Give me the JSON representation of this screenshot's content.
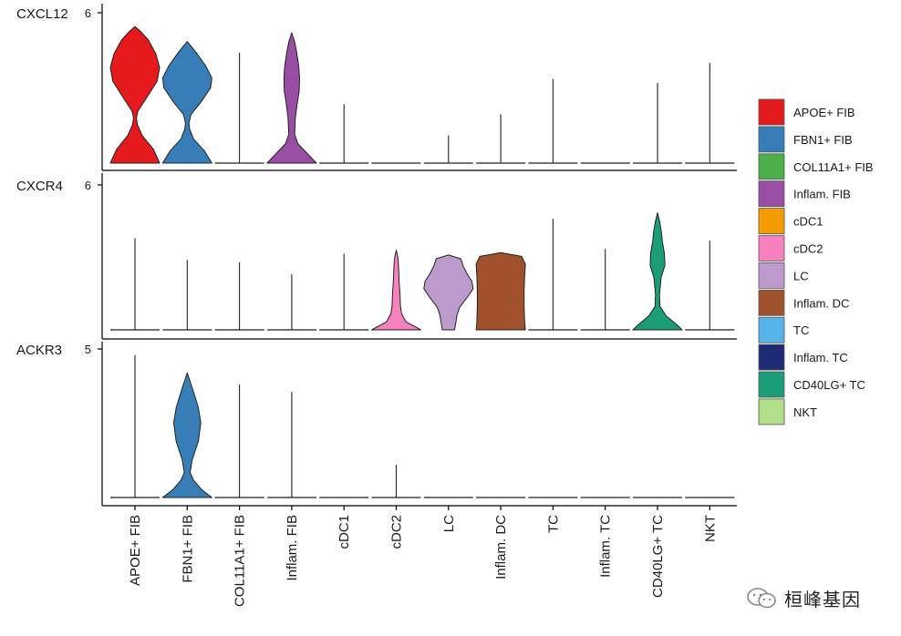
{
  "chart_data": {
    "type": "violin",
    "groups": [
      "APOE+ FIB",
      "FBN1+ FIB",
      "COL11A1+ FIB",
      "Inflam. FIB",
      "cDC1",
      "cDC2",
      "LC",
      "Inflam. DC",
      "TC",
      "Inflam. TC",
      "CD40LG+ TC",
      "NKT"
    ],
    "legend": [
      {
        "label": "APOE+ FIB",
        "color": "#E41A1C"
      },
      {
        "label": "FBN1+ FIB",
        "color": "#377EB8"
      },
      {
        "label": "COL11A1+ FIB",
        "color": "#4DAF4A"
      },
      {
        "label": "Inflam. FIB",
        "color": "#984EA3"
      },
      {
        "label": "cDC1",
        "color": "#F39B00"
      },
      {
        "label": "cDC2",
        "color": "#F781BF"
      },
      {
        "label": "LC",
        "color": "#BC9ACB"
      },
      {
        "label": "Inflam. DC",
        "color": "#A0522D"
      },
      {
        "label": "TC",
        "color": "#56B4E9"
      },
      {
        "label": "Inflam. TC",
        "color": "#1F2A74"
      },
      {
        "label": "CD40LG+ TC",
        "color": "#1B9E77"
      },
      {
        "label": "NKT",
        "color": "#B2DF8A"
      }
    ],
    "panels": [
      {
        "gene": "CXCL12",
        "ytick": "6",
        "ymax": 6.0,
        "violins": [
          {
            "group": "APOE+ FIB",
            "max": 5.45,
            "profile": [
              [
                0,
                1.0
              ],
              [
                0.1,
                0.75
              ],
              [
                0.2,
                0.3
              ],
              [
                0.28,
                0.1
              ],
              [
                0.33,
                0.06
              ],
              [
                0.38,
                0.12
              ],
              [
                0.5,
                0.55
              ],
              [
                0.6,
                0.9
              ],
              [
                0.7,
                1.0
              ],
              [
                0.8,
                0.85
              ],
              [
                0.9,
                0.55
              ],
              [
                0.96,
                0.25
              ],
              [
                1.0,
                0
              ]
            ]
          },
          {
            "group": "FBN1+ FIB",
            "max": 4.85,
            "profile": [
              [
                0,
                1.0
              ],
              [
                0.1,
                0.7
              ],
              [
                0.2,
                0.25
              ],
              [
                0.28,
                0.1
              ],
              [
                0.33,
                0.07
              ],
              [
                0.4,
                0.15
              ],
              [
                0.5,
                0.55
              ],
              [
                0.62,
                0.95
              ],
              [
                0.7,
                1.0
              ],
              [
                0.8,
                0.75
              ],
              [
                0.9,
                0.4
              ],
              [
                1.0,
                0
              ]
            ]
          },
          {
            "group": "COL11A1+ FIB",
            "max": 4.4,
            "profile": []
          },
          {
            "group": "Inflam. FIB",
            "max": 5.2,
            "profile": [
              [
                0,
                1.0
              ],
              [
                0.08,
                0.6
              ],
              [
                0.15,
                0.25
              ],
              [
                0.22,
                0.12
              ],
              [
                0.35,
                0.15
              ],
              [
                0.45,
                0.22
              ],
              [
                0.55,
                0.3
              ],
              [
                0.65,
                0.32
              ],
              [
                0.75,
                0.28
              ],
              [
                0.85,
                0.2
              ],
              [
                0.93,
                0.12
              ],
              [
                1.0,
                0
              ]
            ]
          },
          {
            "group": "cDC1",
            "max": 2.35,
            "profile": []
          },
          {
            "group": "cDC2",
            "max": 0,
            "profile": []
          },
          {
            "group": "LC",
            "max": 1.1,
            "profile": []
          },
          {
            "group": "Inflam. DC",
            "max": 1.95,
            "profile": []
          },
          {
            "group": "TC",
            "max": 3.35,
            "profile": []
          },
          {
            "group": "Inflam. TC",
            "max": 0,
            "profile": []
          },
          {
            "group": "CD40LG+ TC",
            "max": 3.2,
            "profile": []
          },
          {
            "group": "NKT",
            "max": 4.0,
            "profile": []
          }
        ]
      },
      {
        "gene": "CXCR4",
        "ytick": "6",
        "ymax": 6.0,
        "violins": [
          {
            "group": "APOE+ FIB",
            "max": 3.8,
            "profile": []
          },
          {
            "group": "FBN1+ FIB",
            "max": 2.9,
            "profile": []
          },
          {
            "group": "COL11A1+ FIB",
            "max": 2.8,
            "profile": []
          },
          {
            "group": "Inflam. FIB",
            "max": 2.3,
            "profile": []
          },
          {
            "group": "cDC1",
            "max": 3.15,
            "profile": []
          },
          {
            "group": "cDC2",
            "max": 3.3,
            "profile": [
              [
                0,
                1.0
              ],
              [
                0.05,
                0.7
              ],
              [
                0.1,
                0.4
              ],
              [
                0.2,
                0.22
              ],
              [
                0.3,
                0.17
              ],
              [
                0.45,
                0.15
              ],
              [
                0.6,
                0.12
              ],
              [
                0.75,
                0.1
              ],
              [
                0.85,
                0.08
              ],
              [
                0.92,
                0.06
              ],
              [
                1.0,
                0
              ]
            ]
          },
          {
            "group": "LC",
            "max": 3.1,
            "profile": [
              [
                0,
                0.25
              ],
              [
                0.1,
                0.3
              ],
              [
                0.2,
                0.35
              ],
              [
                0.3,
                0.45
              ],
              [
                0.45,
                0.8
              ],
              [
                0.55,
                1.0
              ],
              [
                0.65,
                0.95
              ],
              [
                0.75,
                0.75
              ],
              [
                0.85,
                0.6
              ],
              [
                0.95,
                0.5
              ],
              [
                1.0,
                0
              ]
            ]
          },
          {
            "group": "Inflam. DC",
            "max": 3.2,
            "profile": [
              [
                0,
                1.0
              ],
              [
                0.1,
                0.97
              ],
              [
                0.3,
                0.95
              ],
              [
                0.5,
                0.95
              ],
              [
                0.7,
                0.97
              ],
              [
                0.85,
                1.0
              ],
              [
                0.95,
                0.85
              ],
              [
                1.0,
                0
              ]
            ]
          },
          {
            "group": "TC",
            "max": 4.6,
            "profile": []
          },
          {
            "group": "Inflam. TC",
            "max": 3.35,
            "profile": []
          },
          {
            "group": "CD40LG+ TC",
            "max": 4.85,
            "profile": [
              [
                0,
                1.0
              ],
              [
                0.05,
                0.75
              ],
              [
                0.12,
                0.35
              ],
              [
                0.2,
                0.1
              ],
              [
                0.3,
                0.08
              ],
              [
                0.45,
                0.15
              ],
              [
                0.55,
                0.3
              ],
              [
                0.65,
                0.28
              ],
              [
                0.75,
                0.2
              ],
              [
                0.85,
                0.15
              ],
              [
                0.93,
                0.08
              ],
              [
                1.0,
                0
              ]
            ]
          },
          {
            "group": "NKT",
            "max": 3.7,
            "profile": []
          }
        ]
      },
      {
        "gene": "ACKR3",
        "ytick": "5",
        "ymax": 5.0,
        "violins": [
          {
            "group": "APOE+ FIB",
            "max": 4.8,
            "profile": []
          },
          {
            "group": "FBN1+ FIB",
            "max": 4.2,
            "profile": [
              [
                0,
                1.0
              ],
              [
                0.06,
                0.6
              ],
              [
                0.14,
                0.25
              ],
              [
                0.2,
                0.12
              ],
              [
                0.3,
                0.2
              ],
              [
                0.45,
                0.45
              ],
              [
                0.6,
                0.55
              ],
              [
                0.72,
                0.45
              ],
              [
                0.85,
                0.25
              ],
              [
                1.0,
                0
              ]
            ]
          },
          {
            "group": "COL11A1+ FIB",
            "max": 3.8,
            "profile": []
          },
          {
            "group": "Inflam. FIB",
            "max": 3.55,
            "profile": []
          },
          {
            "group": "cDC1",
            "max": 0,
            "profile": []
          },
          {
            "group": "cDC2",
            "max": 1.1,
            "profile": []
          },
          {
            "group": "LC",
            "max": 0,
            "profile": []
          },
          {
            "group": "Inflam. DC",
            "max": 0,
            "profile": []
          },
          {
            "group": "TC",
            "max": 0,
            "profile": []
          },
          {
            "group": "Inflam. TC",
            "max": 0,
            "profile": []
          },
          {
            "group": "CD40LG+ TC",
            "max": 0,
            "profile": []
          },
          {
            "group": "NKT",
            "max": 0,
            "profile": []
          }
        ]
      }
    ]
  },
  "watermark": {
    "icon": "wechat-icon",
    "text": "桓峰基因"
  }
}
